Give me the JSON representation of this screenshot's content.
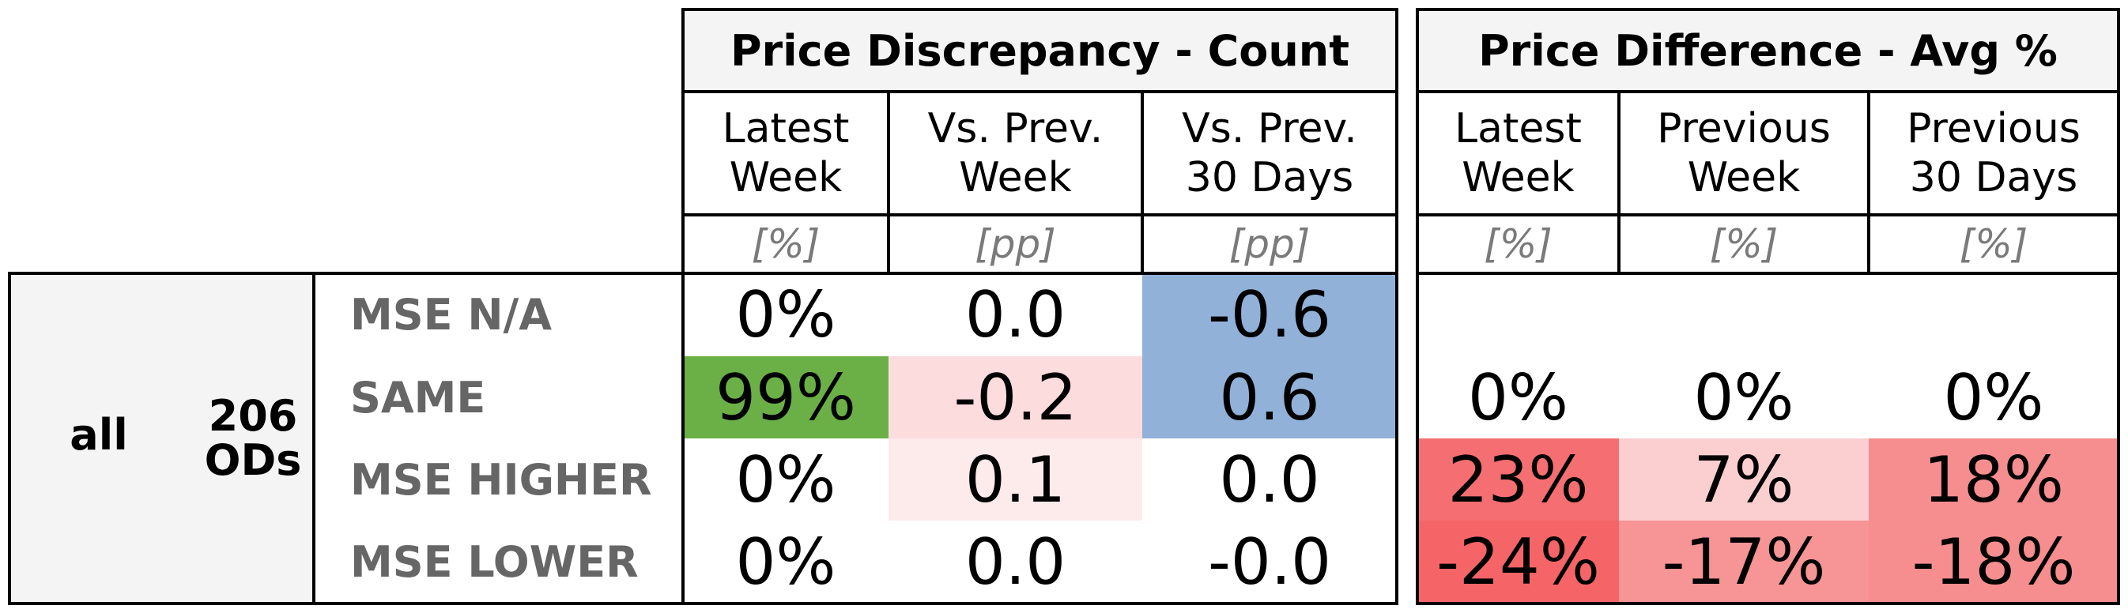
{
  "chart_data": {
    "type": "table",
    "group": {
      "label": "all",
      "count": "206\nODs"
    },
    "row_labels": [
      "MSE N/A",
      "SAME",
      "MSE HIGHER",
      "MSE LOWER"
    ],
    "sections": [
      {
        "title": "Price Discrepancy - Count",
        "columns": [
          {
            "header": "Latest\nWeek",
            "unit": "[%]"
          },
          {
            "header": "Vs. Prev.\nWeek",
            "unit": "[pp]"
          },
          {
            "header": "Vs. Prev.\n30 Days",
            "unit": "[pp]"
          }
        ],
        "cells": [
          [
            {
              "text": "0%",
              "color": "#ffffff"
            },
            {
              "text": "0.0",
              "color": "#ffffff"
            },
            {
              "text": "-0.6",
              "color": "#92b1d9"
            }
          ],
          [
            {
              "text": "99%",
              "color": "#6bb047"
            },
            {
              "text": "-0.2",
              "color": "#fcdcdd"
            },
            {
              "text": "0.6",
              "color": "#92b1d9"
            }
          ],
          [
            {
              "text": "0%",
              "color": "#ffffff"
            },
            {
              "text": "0.1",
              "color": "#fdeaea"
            },
            {
              "text": "0.0",
              "color": "#ffffff"
            }
          ],
          [
            {
              "text": "0%",
              "color": "#ffffff"
            },
            {
              "text": "0.0",
              "color": "#ffffff"
            },
            {
              "text": "-0.0",
              "color": "#ffffff"
            }
          ]
        ]
      },
      {
        "title": "Price Difference - Avg %",
        "columns": [
          {
            "header": "Latest\nWeek",
            "unit": "[%]"
          },
          {
            "header": "Previous\nWeek",
            "unit": "[%]"
          },
          {
            "header": "Previous\n30 Days",
            "unit": "[%]"
          }
        ],
        "cells": [
          [
            {
              "text": "",
              "color": "#ffffff"
            },
            {
              "text": "",
              "color": "#ffffff"
            },
            {
              "text": "",
              "color": "#ffffff"
            }
          ],
          [
            {
              "text": "0%",
              "color": "#ffffff"
            },
            {
              "text": "0%",
              "color": "#ffffff"
            },
            {
              "text": "0%",
              "color": "#ffffff"
            }
          ],
          [
            {
              "text": "23%",
              "color": "#f56e71"
            },
            {
              "text": "7%",
              "color": "#fbcfd0"
            },
            {
              "text": "18%",
              "color": "#f68d8f"
            }
          ],
          [
            {
              "text": "-24%",
              "color": "#f56467"
            },
            {
              "text": "-17%",
              "color": "#f79496"
            },
            {
              "text": "-18%",
              "color": "#f68d8f"
            }
          ]
        ]
      }
    ]
  }
}
